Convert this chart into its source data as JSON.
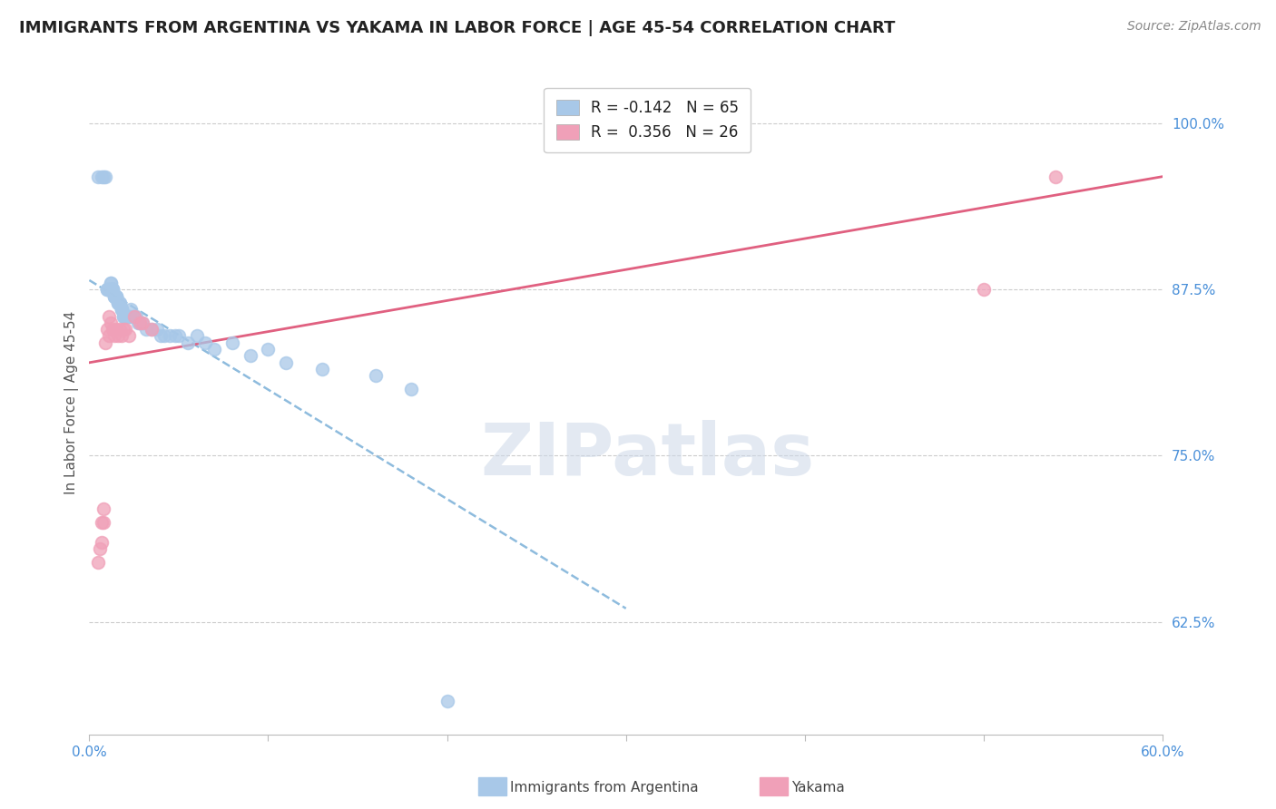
{
  "title": "IMMIGRANTS FROM ARGENTINA VS YAKAMA IN LABOR FORCE | AGE 45-54 CORRELATION CHART",
  "source": "Source: ZipAtlas.com",
  "ylabel": "In Labor Force | Age 45-54",
  "yticks": [
    0.625,
    0.75,
    0.875,
    1.0
  ],
  "ytick_labels": [
    "62.5%",
    "75.0%",
    "87.5%",
    "100.0%"
  ],
  "xlim": [
    0.0,
    0.6
  ],
  "ylim": [
    0.54,
    1.04
  ],
  "argentina_R": -0.142,
  "argentina_N": 65,
  "yakama_R": 0.356,
  "yakama_N": 26,
  "argentina_color": "#a8c8e8",
  "yakama_color": "#f0a0b8",
  "argentina_line_color": "#7ab0d8",
  "yakama_line_color": "#e06080",
  "title_fontsize": 13,
  "source_fontsize": 10,
  "label_fontsize": 11,
  "tick_fontsize": 11,
  "legend_fontsize": 12,
  "watermark": "ZIPatlas",
  "argentina_x": [
    0.005,
    0.007,
    0.008,
    0.009,
    0.01,
    0.01,
    0.01,
    0.011,
    0.011,
    0.012,
    0.012,
    0.012,
    0.013,
    0.013,
    0.013,
    0.013,
    0.014,
    0.014,
    0.014,
    0.015,
    0.015,
    0.015,
    0.015,
    0.016,
    0.016,
    0.016,
    0.017,
    0.017,
    0.018,
    0.018,
    0.018,
    0.019,
    0.019,
    0.02,
    0.02,
    0.021,
    0.022,
    0.022,
    0.023,
    0.024,
    0.025,
    0.026,
    0.027,
    0.028,
    0.03,
    0.032,
    0.035,
    0.038,
    0.04,
    0.042,
    0.045,
    0.048,
    0.05,
    0.055,
    0.06,
    0.065,
    0.07,
    0.08,
    0.09,
    0.1,
    0.11,
    0.13,
    0.16,
    0.18,
    0.2
  ],
  "argentina_y": [
    0.96,
    0.96,
    0.96,
    0.96,
    0.875,
    0.875,
    0.875,
    0.875,
    0.875,
    0.88,
    0.88,
    0.875,
    0.875,
    0.875,
    0.875,
    0.875,
    0.87,
    0.87,
    0.87,
    0.87,
    0.87,
    0.87,
    0.87,
    0.865,
    0.865,
    0.865,
    0.865,
    0.865,
    0.86,
    0.86,
    0.86,
    0.855,
    0.855,
    0.855,
    0.855,
    0.855,
    0.855,
    0.855,
    0.86,
    0.855,
    0.855,
    0.855,
    0.85,
    0.85,
    0.85,
    0.845,
    0.845,
    0.845,
    0.84,
    0.84,
    0.84,
    0.84,
    0.84,
    0.835,
    0.84,
    0.835,
    0.83,
    0.835,
    0.825,
    0.83,
    0.82,
    0.815,
    0.81,
    0.8,
    0.565
  ],
  "yakama_x": [
    0.005,
    0.006,
    0.007,
    0.007,
    0.008,
    0.008,
    0.009,
    0.01,
    0.011,
    0.011,
    0.012,
    0.013,
    0.014,
    0.015,
    0.016,
    0.017,
    0.018,
    0.019,
    0.02,
    0.022,
    0.025,
    0.028,
    0.03,
    0.035,
    0.5,
    0.54
  ],
  "yakama_y": [
    0.67,
    0.68,
    0.7,
    0.685,
    0.71,
    0.7,
    0.835,
    0.845,
    0.84,
    0.855,
    0.85,
    0.845,
    0.84,
    0.845,
    0.84,
    0.845,
    0.84,
    0.845,
    0.845,
    0.84,
    0.855,
    0.85,
    0.85,
    0.845,
    0.875,
    0.96
  ],
  "arg_trend_x": [
    0.0,
    0.3
  ],
  "arg_trend_y": [
    0.882,
    0.635
  ],
  "yak_trend_x": [
    0.0,
    0.6
  ],
  "yak_trend_y": [
    0.82,
    0.96
  ]
}
